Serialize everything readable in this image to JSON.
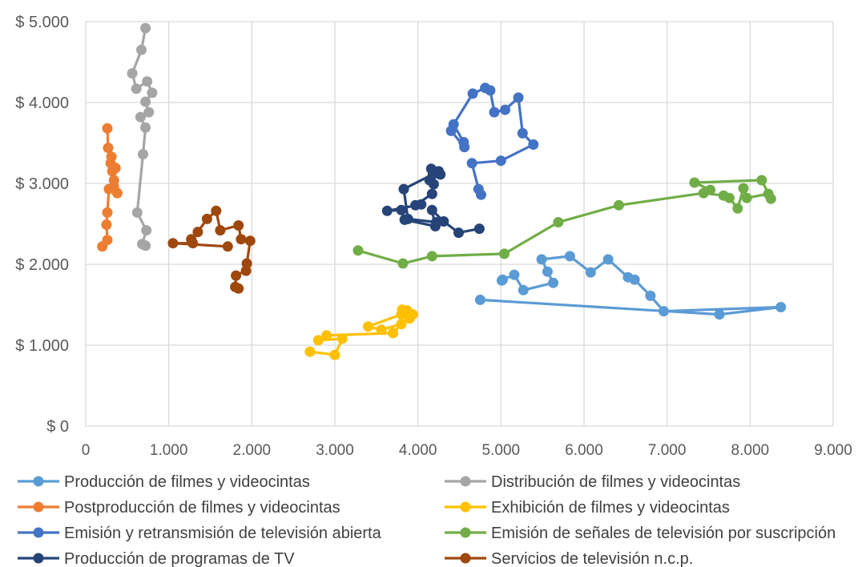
{
  "chart_data": {
    "type": "scatter",
    "xlim": [
      0,
      9000
    ],
    "ylim": [
      0,
      5000
    ],
    "x_ticks": [
      {
        "value": 0,
        "label": "0"
      },
      {
        "value": 1000,
        "label": "1.000"
      },
      {
        "value": 2000,
        "label": "2.000"
      },
      {
        "value": 3000,
        "label": "3.000"
      },
      {
        "value": 4000,
        "label": "4.000"
      },
      {
        "value": 5000,
        "label": "5.000"
      },
      {
        "value": 6000,
        "label": "6.000"
      },
      {
        "value": 7000,
        "label": "7.000"
      },
      {
        "value": 8000,
        "label": "8.000"
      },
      {
        "value": 9000,
        "label": "9.000"
      }
    ],
    "y_ticks": [
      {
        "value": 0,
        "label": "$ 0"
      },
      {
        "value": 1000,
        "label": "$ 1.000"
      },
      {
        "value": 2000,
        "label": "$ 2.000"
      },
      {
        "value": 3000,
        "label": "$ 3.000"
      },
      {
        "value": 4000,
        "label": "$ 4.000"
      },
      {
        "value": 5000,
        "label": "$ 5.000"
      }
    ],
    "grid": true,
    "legend_position": "bottom",
    "series": [
      {
        "name": "Producción de filmes y videocintas",
        "color": "#5B9BD5",
        "points": [
          [
            4750,
            1560
          ],
          [
            7630,
            1380
          ],
          [
            8370,
            1470
          ],
          [
            6960,
            1420
          ],
          [
            6800,
            1610
          ],
          [
            6610,
            1810
          ],
          [
            6530,
            1840
          ],
          [
            6290,
            2060
          ],
          [
            6080,
            1900
          ],
          [
            5830,
            2100
          ],
          [
            5490,
            2060
          ],
          [
            5560,
            1910
          ],
          [
            5630,
            1770
          ],
          [
            5270,
            1680
          ],
          [
            5160,
            1870
          ],
          [
            5020,
            1810
          ],
          [
            5010,
            1800
          ]
        ]
      },
      {
        "name": "Distribución de filmes y videocintas",
        "color": "#A5A5A5",
        "points": [
          [
            720,
            2230
          ],
          [
            680,
            2250
          ],
          [
            730,
            2420
          ],
          [
            620,
            2640
          ],
          [
            690,
            3360
          ],
          [
            720,
            3690
          ],
          [
            660,
            3820
          ],
          [
            760,
            3880
          ],
          [
            720,
            4010
          ],
          [
            800,
            4120
          ],
          [
            740,
            4260
          ],
          [
            610,
            4170
          ],
          [
            560,
            4360
          ],
          [
            670,
            4650
          ],
          [
            720,
            4920
          ]
        ]
      },
      {
        "name": "Postproducción de filmes y videocintas",
        "color": "#ED7D31",
        "points": [
          [
            200,
            2220
          ],
          [
            260,
            2300
          ],
          [
            250,
            2490
          ],
          [
            260,
            2640
          ],
          [
            280,
            2930
          ],
          [
            380,
            2880
          ],
          [
            340,
            2960
          ],
          [
            340,
            3040
          ],
          [
            320,
            3150
          ],
          [
            360,
            3190
          ],
          [
            300,
            3250
          ],
          [
            310,
            3330
          ],
          [
            270,
            3440
          ],
          [
            260,
            3680
          ]
        ]
      },
      {
        "name": "Exhibición de filmes y videocintas",
        "color": "#FFC000",
        "points": [
          [
            2700,
            920
          ],
          [
            3000,
            880
          ],
          [
            3090,
            1080
          ],
          [
            2800,
            1060
          ],
          [
            2900,
            1120
          ],
          [
            3700,
            1150
          ],
          [
            3800,
            1260
          ],
          [
            3560,
            1190
          ],
          [
            3400,
            1230
          ],
          [
            3800,
            1380
          ],
          [
            3810,
            1440
          ],
          [
            3900,
            1330
          ],
          [
            3870,
            1430
          ],
          [
            3940,
            1380
          ]
        ]
      },
      {
        "name": "Emisión y retransmisión de televisión abierta",
        "color": "#4472C4",
        "points": [
          [
            4760,
            2860
          ],
          [
            4730,
            2930
          ],
          [
            4650,
            3250
          ],
          [
            5000,
            3280
          ],
          [
            5390,
            3480
          ],
          [
            5260,
            3620
          ],
          [
            5210,
            4060
          ],
          [
            5050,
            3910
          ],
          [
            4920,
            3880
          ],
          [
            4870,
            4150
          ],
          [
            4810,
            4180
          ],
          [
            4660,
            4110
          ],
          [
            4430,
            3730
          ],
          [
            4550,
            3510
          ],
          [
            4560,
            3450
          ],
          [
            4400,
            3650
          ]
        ]
      },
      {
        "name": "Emisión de señales de televisión por suscripción",
        "color": "#70AD47",
        "points": [
          [
            3280,
            2170
          ],
          [
            3820,
            2010
          ],
          [
            4170,
            2100
          ],
          [
            5040,
            2130
          ],
          [
            5690,
            2520
          ],
          [
            6420,
            2730
          ],
          [
            7440,
            2880
          ],
          [
            7680,
            2850
          ],
          [
            7750,
            2820
          ],
          [
            7850,
            2690
          ],
          [
            7920,
            2940
          ],
          [
            7960,
            2820
          ],
          [
            8220,
            2870
          ],
          [
            8250,
            2810
          ],
          [
            8140,
            3040
          ],
          [
            7330,
            3010
          ],
          [
            7520,
            2920
          ]
        ]
      },
      {
        "name": "Producción de programas de TV",
        "color": "#264478",
        "points": [
          [
            4740,
            2440
          ],
          [
            4490,
            2390
          ],
          [
            4310,
            2530
          ],
          [
            4170,
            2670
          ],
          [
            4210,
            2470
          ],
          [
            3840,
            2550
          ],
          [
            3800,
            2670
          ],
          [
            3630,
            2660
          ],
          [
            4040,
            2740
          ],
          [
            3970,
            2730
          ],
          [
            4170,
            2870
          ],
          [
            4190,
            2990
          ],
          [
            4140,
            3040
          ],
          [
            4270,
            3110
          ],
          [
            4180,
            3110
          ],
          [
            4160,
            3180
          ],
          [
            4250,
            3150
          ],
          [
            3830,
            2930
          ],
          [
            3880,
            2560
          ],
          [
            4220,
            2520
          ]
        ]
      },
      {
        "name": "Servicios de televisión n.c.p.",
        "color": "#9E480E",
        "points": [
          [
            1840,
            1700
          ],
          [
            1800,
            1720
          ],
          [
            1810,
            1860
          ],
          [
            1930,
            1920
          ],
          [
            1940,
            2010
          ],
          [
            1980,
            2290
          ],
          [
            1870,
            2310
          ],
          [
            1840,
            2480
          ],
          [
            1620,
            2420
          ],
          [
            1570,
            2660
          ],
          [
            1460,
            2560
          ],
          [
            1350,
            2400
          ],
          [
            1270,
            2310
          ],
          [
            1290,
            2260
          ],
          [
            1050,
            2260
          ],
          [
            1710,
            2220
          ]
        ]
      }
    ]
  }
}
